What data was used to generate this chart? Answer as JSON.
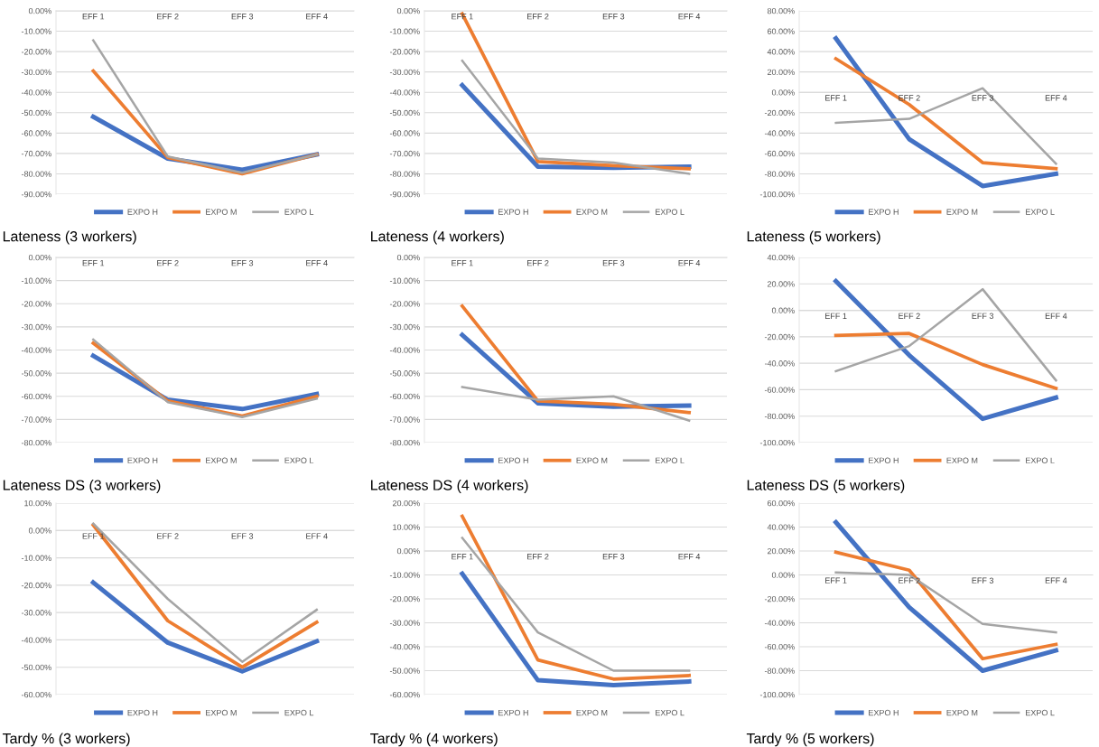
{
  "chart_data": [
    {
      "type": "line",
      "title": "Lateness (3 workers)",
      "categories": [
        "EFF 1",
        "EFF 2",
        "EFF 3",
        "EFF 4"
      ],
      "grid": "y",
      "legend": "bottom",
      "ylim": [
        -90,
        0
      ],
      "yticks": [
        {
          "value": -90,
          "label": "-90.00%"
        },
        {
          "value": -80,
          "label": "-80.00%"
        },
        {
          "value": -70,
          "label": "-70.00%"
        },
        {
          "value": -60,
          "label": "-60.00%"
        },
        {
          "value": -50,
          "label": "-50.00%"
        },
        {
          "value": -40,
          "label": "-40.00%"
        },
        {
          "value": -30,
          "label": "-30.00%"
        },
        {
          "value": -20,
          "label": "-20.00%"
        },
        {
          "value": -10,
          "label": "-10.00%"
        },
        {
          "value": 0,
          "label": "0.00%"
        }
      ],
      "series": [
        {
          "name": "EXPO H",
          "color": "#4472c4",
          "values": [
            -52,
            -72.5,
            -78,
            -70.5
          ]
        },
        {
          "name": "EXPO M",
          "color": "#ed7d31",
          "values": [
            -29.5,
            -72,
            -80,
            -70.5
          ]
        },
        {
          "name": "EXPO L",
          "color": "#a5a5a5",
          "values": [
            -14.5,
            -71.5,
            -79.5,
            -70.5
          ]
        }
      ]
    },
    {
      "type": "line",
      "title": "Lateness (4 workers)",
      "categories": [
        "EFF 1",
        "EFF 2",
        "EFF 3",
        "EFF 4"
      ],
      "grid": "y",
      "legend": "bottom",
      "ylim": [
        -90,
        0
      ],
      "yticks": [
        {
          "value": -90,
          "label": "-90.00%"
        },
        {
          "value": -80,
          "label": "-80.00%"
        },
        {
          "value": -70,
          "label": "-70.00%"
        },
        {
          "value": -60,
          "label": "-60.00%"
        },
        {
          "value": -50,
          "label": "-50.00%"
        },
        {
          "value": -40,
          "label": "-40.00%"
        },
        {
          "value": -30,
          "label": "-30.00%"
        },
        {
          "value": -20,
          "label": "-20.00%"
        },
        {
          "value": -10,
          "label": "-10.00%"
        },
        {
          "value": 0,
          "label": "0.00%"
        }
      ],
      "series": [
        {
          "name": "EXPO H",
          "color": "#4472c4",
          "values": [
            -36.5,
            -76.5,
            -77,
            -76.5
          ]
        },
        {
          "name": "EXPO M",
          "color": "#ed7d31",
          "values": [
            -1.5,
            -74,
            -76,
            -77.5
          ]
        },
        {
          "name": "EXPO L",
          "color": "#a5a5a5",
          "values": [
            -24.5,
            -72.5,
            -74.5,
            -80
          ]
        }
      ]
    },
    {
      "type": "line",
      "title": "Lateness (5 workers)",
      "categories": [
        "EFF 1",
        "EFF 2",
        "EFF 3",
        "EFF 4"
      ],
      "grid": "y",
      "legend": "bottom",
      "ylim": [
        -100,
        80
      ],
      "yticks": [
        {
          "value": -100,
          "label": "-100.00%"
        },
        {
          "value": -80,
          "label": "-80.00%"
        },
        {
          "value": -60,
          "label": "-60.00%"
        },
        {
          "value": -40,
          "label": "-40.00%"
        },
        {
          "value": -20,
          "label": "-20.00%"
        },
        {
          "value": 0,
          "label": "0.00%"
        },
        {
          "value": 20,
          "label": "20.00%"
        },
        {
          "value": 40,
          "label": "40.00%"
        },
        {
          "value": 60,
          "label": "60.00%"
        },
        {
          "value": 80,
          "label": "80.00%"
        }
      ],
      "series": [
        {
          "name": "EXPO H",
          "color": "#4472c4",
          "values": [
            53,
            -46,
            -92,
            -80
          ]
        },
        {
          "name": "EXPO M",
          "color": "#ed7d31",
          "values": [
            33,
            -12,
            -69,
            -75
          ]
        },
        {
          "name": "EXPO L",
          "color": "#a5a5a5",
          "values": [
            -30,
            -26,
            4,
            -70
          ]
        }
      ]
    },
    {
      "type": "line",
      "title": "Lateness DS (3 workers)",
      "categories": [
        "EFF 1",
        "EFF 2",
        "EFF 3",
        "EFF 4"
      ],
      "grid": "y",
      "legend": "bottom",
      "ylim": [
        -80,
        0
      ],
      "yticks": [
        {
          "value": -80,
          "label": "-80.00%"
        },
        {
          "value": -70,
          "label": "-70.00%"
        },
        {
          "value": -60,
          "label": "-60.00%"
        },
        {
          "value": -50,
          "label": "-50.00%"
        },
        {
          "value": -40,
          "label": "-40.00%"
        },
        {
          "value": -30,
          "label": "-30.00%"
        },
        {
          "value": -20,
          "label": "-20.00%"
        },
        {
          "value": -10,
          "label": "-10.00%"
        },
        {
          "value": 0,
          "label": "0.00%"
        }
      ],
      "series": [
        {
          "name": "EXPO H",
          "color": "#4472c4",
          "values": [
            -42.5,
            -61.5,
            -65.5,
            -59
          ]
        },
        {
          "name": "EXPO M",
          "color": "#ed7d31",
          "values": [
            -37,
            -62,
            -68.5,
            -60
          ]
        },
        {
          "name": "EXPO L",
          "color": "#a5a5a5",
          "values": [
            -35.5,
            -62.5,
            -69,
            -61
          ]
        }
      ]
    },
    {
      "type": "line",
      "title": "Lateness DS (4 workers)",
      "categories": [
        "EFF 1",
        "EFF 2",
        "EFF 3",
        "EFF 4"
      ],
      "grid": "y",
      "legend": "bottom",
      "ylim": [
        -80,
        0
      ],
      "yticks": [
        {
          "value": -80,
          "label": "-80.00%"
        },
        {
          "value": -70,
          "label": "-70.00%"
        },
        {
          "value": -60,
          "label": "-60.00%"
        },
        {
          "value": -50,
          "label": "-50.00%"
        },
        {
          "value": -40,
          "label": "-40.00%"
        },
        {
          "value": -30,
          "label": "-30.00%"
        },
        {
          "value": -20,
          "label": "-20.00%"
        },
        {
          "value": -10,
          "label": "-10.00%"
        },
        {
          "value": 0,
          "label": "0.00%"
        }
      ],
      "series": [
        {
          "name": "EXPO H",
          "color": "#4472c4",
          "values": [
            -33.5,
            -63,
            -64.5,
            -64
          ]
        },
        {
          "name": "EXPO M",
          "color": "#ed7d31",
          "values": [
            -21,
            -62,
            -63.5,
            -67
          ]
        },
        {
          "name": "EXPO L",
          "color": "#a5a5a5",
          "values": [
            -56,
            -61.5,
            -60,
            -70.5
          ]
        }
      ]
    },
    {
      "type": "line",
      "title": "Lateness DS (5 workers)",
      "categories": [
        "EFF 1",
        "EFF 2",
        "EFF 3",
        "EFF 4"
      ],
      "grid": "y",
      "legend": "bottom",
      "ylim": [
        -100,
        40
      ],
      "yticks": [
        {
          "value": -100,
          "label": "-100.00%"
        },
        {
          "value": -80,
          "label": "-80.00%"
        },
        {
          "value": -60,
          "label": "-60.00%"
        },
        {
          "value": -40,
          "label": "-40.00%"
        },
        {
          "value": -20,
          "label": "-20.00%"
        },
        {
          "value": 0,
          "label": "0.00%"
        },
        {
          "value": 20,
          "label": "20.00%"
        },
        {
          "value": 40,
          "label": "40.00%"
        }
      ],
      "series": [
        {
          "name": "EXPO H",
          "color": "#4472c4",
          "values": [
            22,
            -34,
            -82,
            -66
          ]
        },
        {
          "name": "EXPO M",
          "color": "#ed7d31",
          "values": [
            -19,
            -17.5,
            -41,
            -59
          ]
        },
        {
          "name": "EXPO L",
          "color": "#a5a5a5",
          "values": [
            -46,
            -27,
            16,
            -53
          ]
        }
      ]
    },
    {
      "type": "line",
      "title": "Tardy % (3 workers)",
      "categories": [
        "EFF 1",
        "EFF 2",
        "EFF 3",
        "EFF 4"
      ],
      "grid": "y",
      "legend": "bottom",
      "ylim": [
        -60,
        10
      ],
      "yticks": [
        {
          "value": -60,
          "label": "-60.00%"
        },
        {
          "value": -50,
          "label": "-50.00%"
        },
        {
          "value": -40,
          "label": "-40.00%"
        },
        {
          "value": -30,
          "label": "-30.00%"
        },
        {
          "value": -20,
          "label": "-20.00%"
        },
        {
          "value": -10,
          "label": "-10.00%"
        },
        {
          "value": 0,
          "label": "0.00%"
        },
        {
          "value": 10,
          "label": "10.00%"
        }
      ],
      "series": [
        {
          "name": "EXPO H",
          "color": "#4472c4",
          "values": [
            -19,
            -41,
            -51.5,
            -40.5
          ]
        },
        {
          "name": "EXPO M",
          "color": "#ed7d31",
          "values": [
            2,
            -33,
            -50,
            -33.5
          ]
        },
        {
          "name": "EXPO L",
          "color": "#a5a5a5",
          "values": [
            2.5,
            -25,
            -48,
            -29
          ]
        }
      ]
    },
    {
      "type": "line",
      "title": "Tardy % (4 workers)",
      "categories": [
        "EFF 1",
        "EFF 2",
        "EFF 3",
        "EFF 4"
      ],
      "grid": "y",
      "legend": "bottom",
      "ylim": [
        -60,
        20
      ],
      "yticks": [
        {
          "value": -60,
          "label": "-60.00%"
        },
        {
          "value": -50,
          "label": "-50.00%"
        },
        {
          "value": -40,
          "label": "-40.00%"
        },
        {
          "value": -30,
          "label": "-30.00%"
        },
        {
          "value": -20,
          "label": "-20.00%"
        },
        {
          "value": -10,
          "label": "-10.00%"
        },
        {
          "value": 0,
          "label": "0.00%"
        },
        {
          "value": 10,
          "label": "10.00%"
        },
        {
          "value": 20,
          "label": "20.00%"
        }
      ],
      "series": [
        {
          "name": "EXPO H",
          "color": "#4472c4",
          "values": [
            -9.5,
            -54,
            -56,
            -54.5
          ]
        },
        {
          "name": "EXPO M",
          "color": "#ed7d31",
          "values": [
            14.5,
            -45.5,
            -53.5,
            -52
          ]
        },
        {
          "name": "EXPO L",
          "color": "#a5a5a5",
          "values": [
            5.5,
            -34,
            -50,
            -50
          ]
        }
      ]
    },
    {
      "type": "line",
      "title": "Tardy % (5 workers)",
      "categories": [
        "EFF 1",
        "EFF 2",
        "EFF 3",
        "EFF 4"
      ],
      "grid": "y",
      "legend": "bottom",
      "ylim": [
        -100,
        60
      ],
      "yticks": [
        {
          "value": -100,
          "label": "-100.00%"
        },
        {
          "value": -80,
          "label": "-80.00%"
        },
        {
          "value": -60,
          "label": "-60.00%"
        },
        {
          "value": -40,
          "label": "-40.00%"
        },
        {
          "value": -20,
          "label": "-20.00%"
        },
        {
          "value": 0,
          "label": "0.00%"
        },
        {
          "value": 20,
          "label": "20.00%"
        },
        {
          "value": 40,
          "label": "40.00%"
        },
        {
          "value": 60,
          "label": "60.00%"
        }
      ],
      "series": [
        {
          "name": "EXPO H",
          "color": "#4472c4",
          "values": [
            44,
            -27,
            -80,
            -63
          ]
        },
        {
          "name": "EXPO M",
          "color": "#ed7d31",
          "values": [
            19,
            4,
            -70,
            -58
          ]
        },
        {
          "name": "EXPO L",
          "color": "#a5a5a5",
          "values": [
            2,
            0,
            -41,
            -48
          ]
        }
      ]
    }
  ]
}
